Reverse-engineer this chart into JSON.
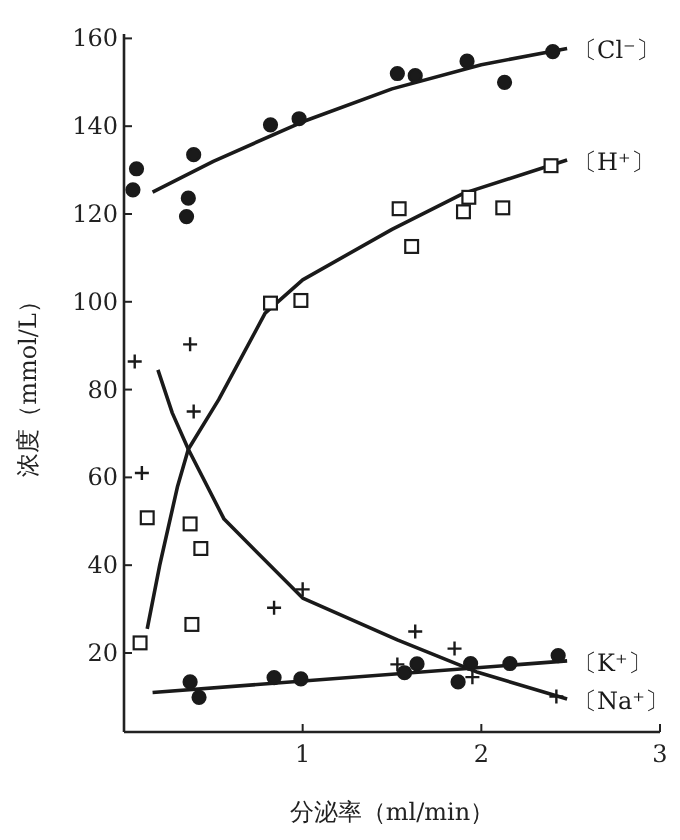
{
  "chart_data": {
    "type": "scatter",
    "xlabel": "分泌率（ml/min）",
    "ylabel": "浓度（mmol/L）",
    "xlim": [
      0,
      3
    ],
    "ylim": [
      2,
      161
    ],
    "xticks": [
      1,
      2,
      3
    ],
    "yticks": [
      20,
      40,
      60,
      80,
      100,
      120,
      140,
      160
    ],
    "grid": false,
    "legend": false,
    "series": [
      {
        "type": "scatter",
        "marker": "circle",
        "color": "#1a1a1a",
        "x": [
          0.05,
          0.07,
          0.39,
          0.36,
          0.35,
          0.82,
          0.98,
          1.53,
          1.63,
          1.92,
          2.13,
          2.4
        ],
        "values": [
          125.5,
          130.3,
          133.5,
          123.6,
          119.4,
          140.3,
          141.7,
          152,
          151.5,
          154.8,
          150,
          157
        ]
      },
      {
        "type": "line",
        "name": "〔Cl⁻〕",
        "marker": "none",
        "line_style": "solid",
        "color": "#1a1a1a",
        "x": [
          0.16,
          0.5,
          1.0,
          1.5,
          2.0,
          2.48
        ],
        "values": [
          125,
          132,
          141,
          148.5,
          154,
          157.7
        ]
      },
      {
        "type": "scatter",
        "marker": "square",
        "color": "#1a1a1a",
        "x": [
          0.82,
          0.99,
          1.54,
          1.61,
          1.9,
          1.93,
          2.12,
          2.39,
          0.09,
          0.13,
          0.37,
          0.43,
          0.38
        ],
        "values": [
          99.7,
          100.3,
          121.2,
          112.6,
          120.5,
          123.8,
          121.4,
          131,
          22.3,
          50.8,
          49.4,
          43.8,
          26.5
        ]
      },
      {
        "type": "line",
        "name": "〔H⁺〕",
        "marker": "none",
        "line_style": "solid",
        "color": "#1a1a1a",
        "x": [
          0.13,
          0.2,
          0.3,
          0.36,
          0.53,
          0.79,
          1.0,
          1.5,
          1.9,
          2.48
        ],
        "values": [
          25.5,
          40,
          58,
          66.4,
          77.7,
          97.4,
          105,
          116.5,
          124.7,
          132.3
        ]
      },
      {
        "type": "scatter",
        "marker": "cross",
        "color": "#1a1a1a",
        "x": [
          0.06,
          0.37,
          0.39,
          0.1,
          0.84,
          1.0,
          1.63,
          1.85,
          1.95,
          2.42,
          1.53
        ],
        "values": [
          86.4,
          90.3,
          75,
          61,
          30.3,
          34.5,
          24.9,
          21,
          14.5,
          10.1,
          17.4
        ]
      },
      {
        "type": "line",
        "name": "〔Na⁺〕",
        "marker": "none",
        "line_style": "solid",
        "color": "#1a1a1a",
        "x": [
          0.19,
          0.27,
          0.36,
          0.56,
          1.0,
          1.53,
          1.98,
          2.48
        ],
        "values": [
          84.5,
          74.7,
          66.4,
          50.5,
          32.5,
          23,
          15.6,
          9.5
        ]
      },
      {
        "type": "scatter",
        "marker": "circle",
        "color": "#1a1a1a",
        "x": [
          0.37,
          0.42,
          0.84,
          0.99,
          1.57,
          1.64,
          1.87,
          1.94,
          2.16,
          2.43
        ],
        "values": [
          13.4,
          9.9,
          14.4,
          14.1,
          15.5,
          17.5,
          13.4,
          17.6,
          17.6,
          19.4
        ]
      },
      {
        "type": "line",
        "name": "〔K⁺〕",
        "marker": "none",
        "line_style": "solid",
        "color": "#1a1a1a",
        "x": [
          0.16,
          2.48
        ],
        "values": [
          11,
          18.2
        ]
      }
    ]
  }
}
